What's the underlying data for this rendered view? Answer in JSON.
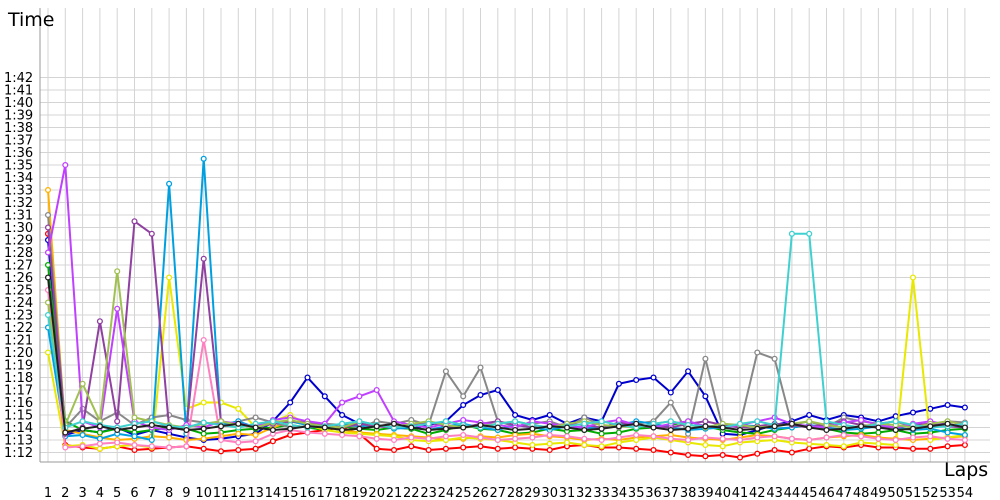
{
  "chart_data": {
    "type": "line",
    "title": "",
    "xlabel": "Laps",
    "ylabel": "Time",
    "x": [
      1,
      2,
      3,
      4,
      5,
      6,
      7,
      8,
      9,
      10,
      11,
      12,
      13,
      14,
      15,
      16,
      17,
      18,
      19,
      20,
      21,
      22,
      23,
      24,
      25,
      26,
      27,
      28,
      29,
      30,
      31,
      32,
      33,
      34,
      35,
      36,
      37,
      38,
      39,
      40,
      41,
      42,
      43,
      44,
      45,
      46,
      47,
      48,
      49,
      50,
      51,
      52,
      53,
      54
    ],
    "xtick_labels": [
      "1",
      "2",
      "3",
      "4",
      "5",
      "6",
      "7",
      "8",
      "9",
      "10",
      "11",
      "12",
      "13",
      "14",
      "15",
      "16",
      "17",
      "18",
      "19",
      "20",
      "21",
      "22",
      "23",
      "24",
      "25",
      "26",
      "27",
      "28",
      "29",
      "30",
      "31",
      "32",
      "33",
      "34",
      "35",
      "36",
      "37",
      "38",
      "39",
      "40",
      "41",
      "42",
      "43",
      "44",
      "45",
      "46",
      "47",
      "48",
      "49",
      "50",
      "51",
      "52",
      "53",
      "54"
    ],
    "ytick_labels": [
      "1:12",
      "1:13",
      "1:14",
      "1:15",
      "1:16",
      "1:17",
      "1:18",
      "1:19",
      "1:20",
      "1:21",
      "1:22",
      "1:23",
      "1:24",
      "1:25",
      "1:26",
      "1:27",
      "1:28",
      "1:29",
      "1:30",
      "1:31",
      "1:32",
      "1:33",
      "1:34",
      "1:35",
      "1:36",
      "1:37",
      "1:38",
      "1:39",
      "1:40",
      "1:41",
      "1:42"
    ],
    "y_unit": "seconds",
    "ylim": [
      71,
      104
    ],
    "grid": true,
    "legend": "none",
    "series": [
      {
        "color": "#ff0000",
        "values": [
          89.5,
          72.6,
          72.4,
          72.3,
          72.5,
          72.2,
          72.3,
          72.4,
          72.5,
          72.3,
          72.1,
          72.2,
          72.3,
          72.9,
          73.4,
          73.6,
          73.8,
          74.0,
          73.5,
          72.3,
          72.2,
          72.5,
          72.2,
          72.3,
          72.4,
          72.5,
          72.3,
          72.4,
          72.3,
          72.2,
          72.5,
          72.6,
          72.4,
          72.4,
          72.3,
          72.2,
          72.0,
          71.8,
          71.7,
          71.8,
          71.6,
          71.9,
          72.2,
          72.0,
          72.3,
          72.5,
          72.4,
          72.6,
          72.4,
          72.4,
          72.3,
          72.3,
          72.5,
          72.6
        ]
      },
      {
        "color": "#0000cc",
        "values": [
          89.0,
          73.4,
          73.8,
          73.6,
          74.0,
          73.4,
          73.8,
          73.5,
          73.2,
          73.0,
          73.1,
          73.3,
          73.5,
          74.5,
          76.0,
          78.0,
          76.5,
          75.0,
          74.3,
          74.2,
          74.0,
          73.9,
          74.2,
          74.5,
          75.8,
          76.6,
          77.0,
          75.0,
          74.6,
          75.0,
          74.3,
          74.8,
          74.5,
          77.5,
          77.8,
          78.0,
          76.8,
          78.5,
          76.5,
          73.5,
          73.4,
          73.8,
          74.2,
          74.5,
          75.0,
          74.6,
          75.0,
          74.8,
          74.5,
          74.9,
          75.2,
          75.5,
          75.8,
          75.6
        ]
      },
      {
        "color": "#00aa00",
        "values": [
          87.0,
          74.5,
          73.8,
          73.6,
          73.9,
          73.6,
          73.8,
          74.0,
          73.9,
          73.5,
          73.6,
          73.8,
          73.9,
          74.0,
          74.2,
          74.0,
          73.8,
          74.1,
          73.9,
          73.8,
          74.0,
          73.9,
          73.5,
          73.8,
          74.2,
          73.9,
          73.8,
          73.5,
          73.6,
          73.9,
          73.7,
          73.8,
          73.5,
          73.6,
          73.9,
          74.0,
          74.2,
          74.5,
          74.1,
          73.8,
          73.6,
          73.5,
          73.8,
          74.0,
          74.2,
          73.9,
          73.6,
          73.5,
          73.6,
          73.8,
          73.5,
          73.6,
          73.8,
          73.9
        ]
      },
      {
        "color": "#ffb000",
        "values": [
          93.0,
          73.8,
          73.5,
          73.2,
          73.0,
          73.1,
          73.3,
          73.2,
          73.0,
          73.1,
          73.3,
          73.5,
          73.4,
          74.0,
          74.5,
          74.2,
          74.0,
          73.8,
          73.6,
          73.5,
          73.4,
          73.3,
          73.2,
          73.0,
          73.1,
          73.3,
          73.2,
          73.4,
          73.5,
          73.3,
          73.2,
          73.0,
          73.1,
          73.0,
          73.2,
          73.3,
          73.4,
          73.2,
          73.1,
          73.0,
          73.2,
          73.4,
          73.3,
          73.1,
          73.0,
          73.2,
          73.3,
          73.4,
          73.2,
          73.1,
          73.0,
          73.1,
          73.2,
          73.3
        ]
      },
      {
        "color": "#e8e800",
        "values": [
          80.0,
          72.5,
          72.6,
          72.3,
          72.5,
          72.6,
          72.4,
          86.0,
          75.5,
          76.0,
          76.0,
          75.5,
          74.0,
          74.5,
          75.0,
          74.2,
          73.8,
          73.6,
          73.5,
          73.4,
          73.3,
          73.0,
          72.9,
          73.0,
          73.2,
          73.1,
          73.0,
          72.8,
          72.6,
          72.7,
          72.8,
          72.6,
          72.5,
          72.8,
          73.0,
          73.2,
          73.0,
          72.8,
          72.6,
          72.5,
          72.8,
          72.9,
          73.0,
          72.8,
          72.7,
          72.6,
          72.5,
          72.8,
          72.7,
          72.6,
          86.0,
          73.0,
          73.2,
          73.4
        ]
      },
      {
        "color": "#888888",
        "values": [
          91.0,
          74.0,
          75.5,
          74.5,
          75.2,
          74.2,
          74.8,
          75.0,
          74.6,
          74.4,
          74.2,
          74.5,
          74.8,
          74.4,
          74.0,
          74.1,
          74.3,
          74.2,
          74.0,
          74.5,
          74.3,
          74.6,
          74.2,
          78.5,
          76.5,
          78.8,
          74.5,
          74.1,
          74.3,
          74.5,
          74.0,
          74.8,
          74.2,
          74.0,
          74.3,
          74.5,
          76.0,
          73.5,
          79.5,
          74.0,
          74.2,
          80.0,
          79.5,
          74.2,
          74.5,
          74.0,
          74.8,
          74.5,
          74.3,
          74.5,
          74.0,
          74.2,
          74.5,
          74.4
        ]
      },
      {
        "color": "#00a0e0",
        "values": [
          82.0,
          73.3,
          73.4,
          73.1,
          73.5,
          73.3,
          73.0,
          93.5,
          73.5,
          95.5,
          74.2,
          74.5,
          74.0,
          74.3,
          74.5,
          74.2,
          74.0,
          74.3,
          74.1,
          74.2,
          73.9,
          74.0,
          73.8,
          74.1,
          74.3,
          74.0,
          73.8,
          74.2,
          74.0,
          73.8,
          74.1,
          74.0,
          73.9,
          74.2,
          74.5,
          74.3,
          74.0,
          73.8,
          73.9,
          74.0,
          74.2,
          74.1,
          73.9,
          74.0,
          74.2,
          74.0,
          73.8,
          73.9,
          74.1,
          74.0,
          73.8,
          73.9,
          73.6,
          73.4
        ]
      },
      {
        "color": "#ff80c0",
        "values": [
          85.0,
          72.4,
          72.5,
          72.7,
          72.8,
          72.6,
          72.5,
          72.4,
          72.5,
          81.0,
          73.0,
          72.8,
          72.9,
          73.5,
          73.8,
          73.6,
          73.5,
          73.4,
          73.3,
          73.1,
          73.0,
          73.2,
          73.1,
          73.3,
          73.4,
          73.2,
          73.0,
          73.1,
          73.2,
          73.4,
          73.3,
          73.1,
          73.0,
          73.2,
          73.4,
          73.3,
          73.1,
          73.0,
          73.2,
          73.1,
          73.0,
          73.2,
          73.3,
          73.1,
          73.0,
          73.2,
          73.4,
          73.3,
          73.1,
          73.0,
          73.2,
          73.3,
          73.1,
          73.0
        ]
      },
      {
        "color": "#9040a0",
        "values": [
          90.0,
          73.5,
          74.0,
          82.5,
          74.5,
          90.5,
          89.5,
          74.0,
          73.8,
          87.5,
          74.5,
          74.2,
          74.0,
          74.3,
          74.5,
          74.4,
          74.2,
          74.0,
          74.3,
          74.1,
          74.0,
          74.2,
          74.4,
          74.1,
          74.0,
          74.3,
          74.5,
          74.2,
          74.0,
          74.1,
          74.3,
          74.2,
          74.0,
          74.4,
          74.2,
          74.1,
          74.0,
          74.3,
          74.5,
          74.2,
          74.0,
          74.1,
          74.3,
          74.2,
          74.0,
          74.3,
          74.5,
          74.2,
          74.1,
          74.0,
          74.2,
          74.3,
          74.1,
          74.0
        ]
      },
      {
        "color": "#c040ff",
        "values": [
          88.0,
          95.0,
          74.5,
          74.0,
          83.5,
          74.5,
          74.0,
          73.8,
          74.2,
          74.0,
          74.5,
          74.3,
          74.1,
          74.6,
          74.8,
          74.5,
          74.3,
          76.0,
          76.5,
          77.0,
          74.5,
          74.2,
          74.0,
          74.3,
          74.6,
          74.4,
          74.2,
          74.0,
          74.5,
          74.3,
          74.1,
          74.0,
          74.4,
          74.6,
          74.2,
          74.0,
          74.3,
          74.5,
          74.1,
          74.0,
          74.2,
          74.5,
          74.8,
          74.3,
          74.1,
          74.0,
          74.4,
          74.6,
          74.2,
          74.0,
          74.3,
          74.5,
          74.2,
          74.1
        ]
      },
      {
        "color": "#a0c050",
        "values": [
          84.0,
          74.2,
          77.5,
          74.5,
          86.5,
          74.8,
          74.5,
          74.2,
          74.0,
          74.3,
          74.5,
          74.2,
          74.0,
          74.4,
          74.6,
          74.3,
          74.1,
          74.0,
          74.5,
          74.2,
          74.0,
          74.3,
          74.5,
          74.2,
          74.0,
          74.1,
          74.3,
          74.5,
          74.2,
          74.0,
          74.3,
          74.5,
          74.2,
          74.1,
          74.0,
          74.3,
          74.5,
          74.2,
          74.0,
          74.3,
          74.2,
          74.0,
          74.1,
          74.3,
          74.5,
          74.2,
          74.0,
          74.1,
          74.3,
          74.2,
          74.0,
          74.3,
          74.5,
          74.2
        ]
      },
      {
        "color": "#40d0d0",
        "values": [
          83.0,
          74.0,
          74.5,
          74.2,
          74.0,
          74.3,
          74.5,
          74.1,
          74.0,
          74.4,
          74.2,
          74.0,
          74.3,
          74.5,
          74.2,
          74.0,
          74.1,
          74.3,
          74.5,
          74.2,
          74.0,
          74.1,
          74.3,
          74.5,
          74.2,
          74.0,
          74.3,
          74.5,
          74.2,
          74.0,
          74.1,
          74.3,
          74.5,
          74.2,
          74.0,
          74.3,
          74.5,
          74.2,
          74.1,
          74.0,
          74.3,
          74.5,
          74.2,
          89.5,
          89.5,
          74.5,
          74.2,
          74.0,
          74.3,
          74.5,
          74.2,
          74.0,
          74.1,
          74.3
        ]
      },
      {
        "color": "#202020",
        "values": [
          86.0,
          73.6,
          73.9,
          74.1,
          73.8,
          74.0,
          74.2,
          74.0,
          73.8,
          73.9,
          74.1,
          74.3,
          74.0,
          73.8,
          73.9,
          74.1,
          74.0,
          73.8,
          73.9,
          74.1,
          74.3,
          74.0,
          73.8,
          73.9,
          74.0,
          74.2,
          74.0,
          73.8,
          73.9,
          74.1,
          74.0,
          73.8,
          73.9,
          74.1,
          74.3,
          74.0,
          73.8,
          73.9,
          74.1,
          74.0,
          73.8,
          73.9,
          74.1,
          74.3,
          74.0,
          73.8,
          73.9,
          74.1,
          74.0,
          73.8,
          73.9,
          74.1,
          74.3,
          74.0
        ]
      }
    ]
  }
}
